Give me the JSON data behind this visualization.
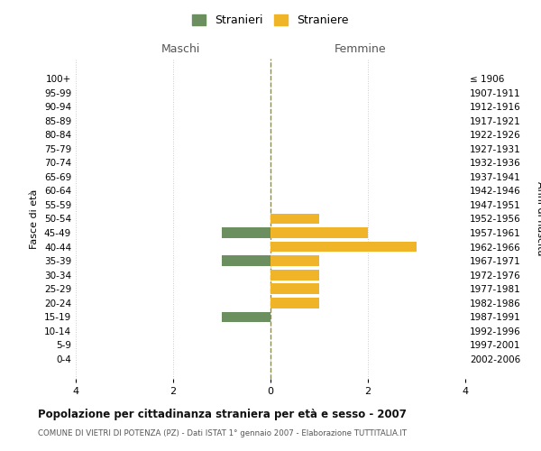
{
  "age_groups": [
    "100+",
    "95-99",
    "90-94",
    "85-89",
    "80-84",
    "75-79",
    "70-74",
    "65-69",
    "60-64",
    "55-59",
    "50-54",
    "45-49",
    "40-44",
    "35-39",
    "30-34",
    "25-29",
    "20-24",
    "15-19",
    "10-14",
    "5-9",
    "0-4"
  ],
  "birth_years": [
    "≤ 1906",
    "1907-1911",
    "1912-1916",
    "1917-1921",
    "1922-1926",
    "1927-1931",
    "1932-1936",
    "1937-1941",
    "1942-1946",
    "1947-1951",
    "1952-1956",
    "1957-1961",
    "1962-1966",
    "1967-1971",
    "1972-1976",
    "1977-1981",
    "1982-1986",
    "1987-1991",
    "1992-1996",
    "1997-2001",
    "2002-2006"
  ],
  "maschi": [
    0,
    0,
    0,
    0,
    0,
    0,
    0,
    0,
    0,
    0,
    0,
    1,
    0,
    1,
    0,
    0,
    0,
    1,
    0,
    0,
    0
  ],
  "femmine": [
    0,
    0,
    0,
    0,
    0,
    0,
    0,
    0,
    0,
    0,
    1,
    2,
    3,
    1,
    1,
    1,
    1,
    0,
    0,
    0,
    0
  ],
  "maschi_color": "#6b8f5e",
  "femmine_color": "#f0b429",
  "background_color": "#ffffff",
  "grid_color": "#cccccc",
  "center_line_color": "#8b8b5a",
  "xlim": 4,
  "title": "Popolazione per cittadinanza straniera per età e sesso - 2007",
  "subtitle": "COMUNE DI VIETRI DI POTENZA (PZ) - Dati ISTAT 1° gennaio 2007 - Elaborazione TUTTITALIA.IT",
  "left_header": "Maschi",
  "right_header": "Femmine",
  "ylabel_left": "Fasce di età",
  "ylabel_right": "Anni di nascita",
  "legend_stranieri": "Stranieri",
  "legend_straniere": "Straniere",
  "xticks": [
    -4,
    -2,
    0,
    2,
    4
  ],
  "xticklabels": [
    "4",
    "2",
    "0",
    "2",
    "4"
  ]
}
